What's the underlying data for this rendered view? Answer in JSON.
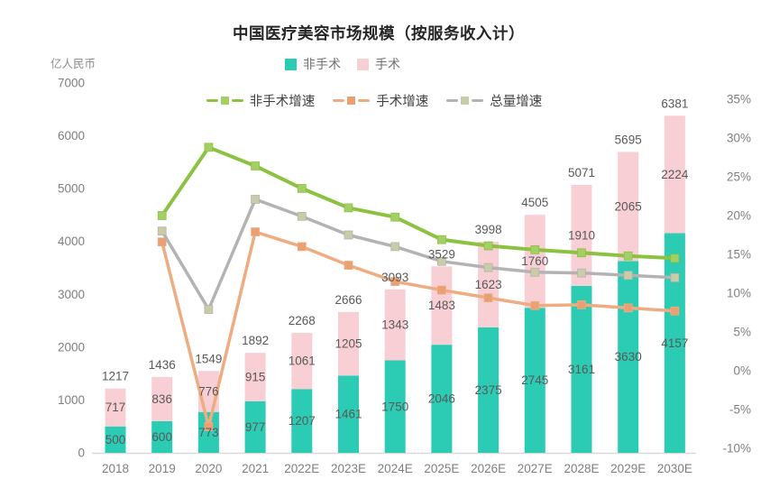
{
  "title": "中国医疗美容市场规模（按服务收入计）",
  "unit_label": "亿人民币",
  "colors": {
    "nonsurgical_bar": "#2CCBB3",
    "surgical_bar": "#F8CFD4",
    "nonsurgical_growth_line": "#8BC240",
    "nonsurgical_growth_marker": "#A4CF66",
    "surgical_growth_line": "#EFAC81",
    "surgical_growth_marker": "#E9A173",
    "total_growth_line": "#B3B3B3",
    "total_growth_marker": "#C9CCA6",
    "axis_text": "#7F7F7F",
    "data_label_text": "#595959",
    "axis_line": "#D9D9D9"
  },
  "legend": {
    "bars": [
      {
        "label": "非手术"
      },
      {
        "label": "手术"
      }
    ],
    "lines": [
      {
        "label": "非手术增速"
      },
      {
        "label": "手术增速"
      },
      {
        "label": "总量增速"
      }
    ]
  },
  "chart_data": {
    "type": "bar",
    "subtype": "stacked-bar-with-growth-lines",
    "title": "中国医疗美容市场规模（按服务收入计）",
    "ylabel_left": "亿人民币",
    "categories": [
      "2018",
      "2019",
      "2020",
      "2021",
      "2022E",
      "2023E",
      "2024E",
      "2025E",
      "2026E",
      "2027E",
      "2028E",
      "2029E",
      "2030E"
    ],
    "series": [
      {
        "name": "非手术",
        "type": "bar",
        "values": [
          500,
          600,
          773,
          977,
          1207,
          1461,
          1750,
          2046,
          2375,
          2745,
          3161,
          3630,
          4157
        ]
      },
      {
        "name": "手术",
        "type": "bar",
        "values": [
          717,
          836,
          776,
          915,
          1061,
          1205,
          1343,
          1483,
          1623,
          1760,
          1910,
          2065,
          2224
        ]
      }
    ],
    "totals": [
      1217,
      1436,
      1549,
      1892,
      2268,
      2666,
      3093,
      3529,
      3998,
      4505,
      5071,
      5695,
      6381
    ],
    "line_series": [
      {
        "name": "手术增速",
        "axis": "right",
        "values": [
          null,
          16.6,
          -7.2,
          17.9,
          16.0,
          13.6,
          11.5,
          10.4,
          9.4,
          8.4,
          8.5,
          8.1,
          7.7
        ]
      },
      {
        "name": "总量增速",
        "axis": "right",
        "values": [
          null,
          18.0,
          7.9,
          22.1,
          19.9,
          17.5,
          16.0,
          14.1,
          13.3,
          12.7,
          12.6,
          12.3,
          12.0
        ]
      },
      {
        "name": "非手术增速",
        "axis": "right",
        "values": [
          null,
          20.0,
          28.8,
          26.4,
          23.5,
          21.0,
          19.8,
          16.9,
          16.1,
          15.6,
          15.2,
          14.8,
          14.5
        ]
      }
    ],
    "left_axis": {
      "min": 0,
      "max": 7000,
      "tick_step": 1000,
      "tick_labels": [
        "0",
        "1000",
        "2000",
        "3000",
        "4000",
        "5000",
        "6000",
        "7000"
      ]
    },
    "right_axis": {
      "min": -10,
      "max": 35,
      "tick_step": 5,
      "tick_labels": [
        "-10%",
        "-5%",
        "0%",
        "5%",
        "10%",
        "15%",
        "20%",
        "25%",
        "30%",
        "35%"
      ]
    },
    "grid": false,
    "legend_position": "top-center"
  }
}
